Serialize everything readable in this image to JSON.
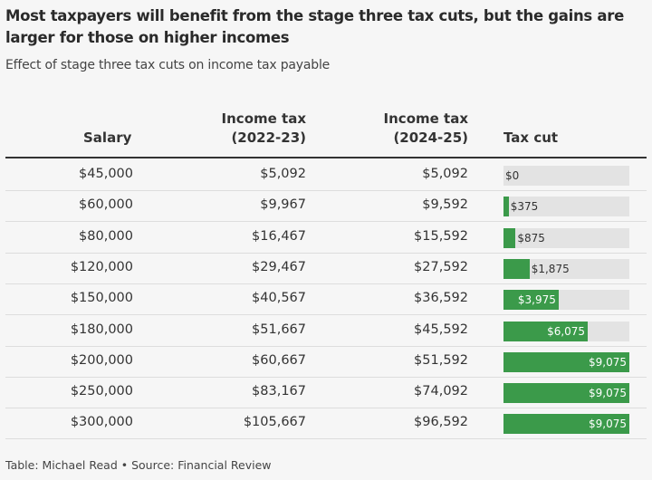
{
  "title": "Most taxpayers will benefit from the stage three tax cuts, but the gains are larger for those on higher incomes",
  "subtitle": "Effect of stage three tax cuts on income tax payable",
  "footer": "Table: Michael Read • Source: Financial Review",
  "colors": {
    "bar": "#3b9a4a",
    "track": "#e3e3e3"
  },
  "chart_data": {
    "type": "table",
    "columns": [
      "Salary",
      "Income tax (2022-23)",
      "Income tax (2024-25)",
      "Tax cut"
    ],
    "column_lines": [
      [
        "Salary"
      ],
      [
        "Income tax",
        "(2022-23)"
      ],
      [
        "Income tax",
        "(2024-25)"
      ],
      [
        "Tax cut"
      ]
    ],
    "rows": [
      {
        "salary": "$45,000",
        "tax_2022": "$5,092",
        "tax_2024": "$5,092",
        "cut": "$0",
        "cut_value": 0
      },
      {
        "salary": "$60,000",
        "tax_2022": "$9,967",
        "tax_2024": "$9,592",
        "cut": "$375",
        "cut_value": 375
      },
      {
        "salary": "$80,000",
        "tax_2022": "$16,467",
        "tax_2024": "$15,592",
        "cut": "$875",
        "cut_value": 875
      },
      {
        "salary": "$120,000",
        "tax_2022": "$29,467",
        "tax_2024": "$27,592",
        "cut": "$1,875",
        "cut_value": 1875
      },
      {
        "salary": "$150,000",
        "tax_2022": "$40,567",
        "tax_2024": "$36,592",
        "cut": "$3,975",
        "cut_value": 3975
      },
      {
        "salary": "$180,000",
        "tax_2022": "$51,667",
        "tax_2024": "$45,592",
        "cut": "$6,075",
        "cut_value": 6075
      },
      {
        "salary": "$200,000",
        "tax_2022": "$60,667",
        "tax_2024": "$51,592",
        "cut": "$9,075",
        "cut_value": 9075
      },
      {
        "salary": "$250,000",
        "tax_2022": "$83,167",
        "tax_2024": "$74,092",
        "cut": "$9,075",
        "cut_value": 9075
      },
      {
        "salary": "$300,000",
        "tax_2022": "$105,667",
        "tax_2024": "$96,592",
        "cut": "$9,075",
        "cut_value": 9075
      }
    ],
    "bar_max": 9075
  }
}
